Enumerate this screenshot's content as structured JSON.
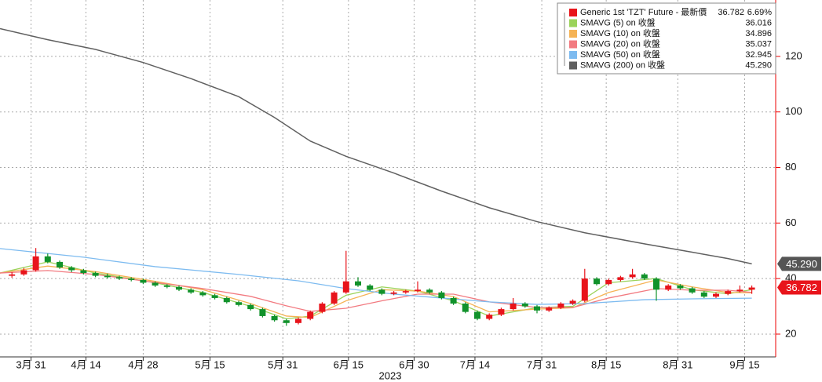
{
  "chart_data": {
    "type": "candlestick",
    "x_label": "2023",
    "xlim": [
      -1,
      64
    ],
    "ylim": [
      11.8,
      140.3
    ],
    "yticks": [
      20,
      40,
      60,
      80,
      100,
      120
    ],
    "xticks": [
      {
        "value": 1.6,
        "label": "3月 31"
      },
      {
        "value": 6.2,
        "label": "4月 14"
      },
      {
        "value": 11.0,
        "label": "4月 28"
      },
      {
        "value": 16.6,
        "label": "5月 15"
      },
      {
        "value": 22.7,
        "label": "5月 31"
      },
      {
        "value": 28.2,
        "label": "6月 15"
      },
      {
        "value": 33.7,
        "label": "6月 30"
      },
      {
        "value": 38.8,
        "label": "7月 14"
      },
      {
        "value": 44.4,
        "label": "7月 31"
      },
      {
        "value": 49.8,
        "label": "8月 15"
      },
      {
        "value": 55.8,
        "label": "8月 31"
      },
      {
        "value": 61.4,
        "label": "9月 15"
      }
    ],
    "grid": true,
    "candles": {
      "name": "Generic 1st 'TZT' Future - 最新價",
      "color": "#e8141b",
      "up_color": "#e8141b",
      "down_color": "#11922b",
      "legend_value": "36.782",
      "change": "6.69%",
      "ohlc": [
        [
          41,
          42.3,
          40.3,
          41.5
        ],
        [
          41.5,
          43.8,
          41,
          43
        ],
        [
          43,
          51,
          42.5,
          48
        ],
        [
          48,
          49,
          45.5,
          46
        ],
        [
          46,
          46.5,
          43.5,
          44
        ],
        [
          44,
          44.5,
          42.3,
          43
        ],
        [
          43,
          43.5,
          41.5,
          42
        ],
        [
          42,
          42.5,
          40.5,
          41
        ],
        [
          41,
          41.8,
          40,
          40.5
        ],
        [
          40.5,
          41,
          39.5,
          40
        ],
        [
          40,
          40.5,
          39,
          39.5
        ],
        [
          39.5,
          40,
          38,
          38.5
        ],
        [
          38.5,
          39,
          37,
          37.5
        ],
        [
          37.5,
          38,
          36.5,
          37
        ],
        [
          37,
          37.5,
          35.5,
          36
        ],
        [
          36,
          36.5,
          34.5,
          35
        ],
        [
          35,
          35.5,
          33.5,
          34
        ],
        [
          34,
          34.5,
          32.5,
          33
        ],
        [
          33,
          33.5,
          31,
          31.5
        ],
        [
          31.5,
          32,
          30,
          30.5
        ],
        [
          30.5,
          31,
          28.5,
          29
        ],
        [
          29,
          29.5,
          26,
          26.5
        ],
        [
          26.5,
          27,
          24.5,
          25
        ],
        [
          25,
          25.5,
          23,
          24
        ],
        [
          24,
          26,
          23.5,
          25.5
        ],
        [
          25.5,
          28.5,
          25,
          28
        ],
        [
          28,
          31.5,
          27.5,
          31
        ],
        [
          31,
          35.5,
          30.5,
          35
        ],
        [
          35,
          50,
          34.5,
          39
        ],
        [
          39,
          40.5,
          37,
          37.5
        ],
        [
          37.5,
          38,
          35.5,
          36
        ],
        [
          36,
          36.5,
          34,
          34.5
        ],
        [
          34.5,
          35.5,
          34,
          35
        ],
        [
          35,
          36,
          34.5,
          35.5
        ],
        [
          35.5,
          39,
          35,
          36
        ],
        [
          36,
          36.5,
          34.5,
          35
        ],
        [
          35,
          35.5,
          32.5,
          33
        ],
        [
          33,
          33.5,
          30.5,
          31
        ],
        [
          31,
          31.5,
          27.5,
          28
        ],
        [
          28,
          28.5,
          25,
          25.5
        ],
        [
          25.5,
          27.5,
          25,
          27
        ],
        [
          27,
          29.5,
          26.5,
          29
        ],
        [
          29,
          33,
          28.5,
          31
        ],
        [
          31,
          31.5,
          29.5,
          30
        ],
        [
          30,
          30.5,
          27.5,
          28.5
        ],
        [
          28.5,
          30,
          28,
          29.5
        ],
        [
          29.5,
          31.5,
          29,
          31
        ],
        [
          31,
          32.5,
          30.5,
          32
        ],
        [
          32,
          43.5,
          31.5,
          40
        ],
        [
          40,
          40.5,
          37.5,
          38
        ],
        [
          38,
          40,
          37.5,
          39.5
        ],
        [
          39.5,
          41,
          39,
          40.5
        ],
        [
          40.5,
          43.5,
          40,
          41.5
        ],
        [
          41.5,
          42,
          39.5,
          40
        ],
        [
          40,
          40.5,
          32,
          36
        ],
        [
          36,
          38,
          35.5,
          37.5
        ],
        [
          37.5,
          38,
          36,
          36.5
        ],
        [
          36.5,
          37,
          34.5,
          35
        ],
        [
          35,
          35.5,
          33,
          33.5
        ],
        [
          33.5,
          35,
          33,
          34.5
        ],
        [
          34.5,
          36,
          34,
          35.5
        ],
        [
          35.5,
          37.5,
          35,
          36
        ],
        [
          36,
          37.5,
          34.5,
          36.782
        ]
      ]
    },
    "series": [
      {
        "name": "SMAVG (5)  on 收盤",
        "color": "#9bd35a",
        "legend_value": "36.016",
        "x": [
          -1,
          3,
          7,
          12,
          16,
          20,
          23,
          25,
          28,
          31,
          34,
          37,
          40,
          44,
          47,
          50,
          54,
          57,
          60,
          62
        ],
        "values": [
          42,
          46,
          42,
          38.5,
          35,
          30,
          25.5,
          26.5,
          34,
          37,
          35.5,
          32,
          26.5,
          29.5,
          30,
          38.5,
          40,
          36,
          34.5,
          36.016
        ]
      },
      {
        "name": "SMAVG (10)  on 收盤",
        "color": "#f5b355",
        "legend_value": "34.896",
        "x": [
          -1,
          3,
          7,
          12,
          16,
          20,
          23,
          25,
          28,
          31,
          34,
          37,
          40,
          44,
          47,
          50,
          54,
          57,
          60,
          62
        ],
        "values": [
          42,
          44.5,
          42.5,
          39,
          36,
          31,
          26.5,
          26,
          32,
          36,
          35.5,
          33.5,
          28,
          29,
          29.5,
          35,
          39.5,
          37,
          35,
          34.896
        ]
      },
      {
        "name": "SMAVG (20)  on 收盤",
        "color": "#f27a80",
        "legend_value": "35.037",
        "x": [
          -1,
          3,
          7,
          12,
          16,
          20,
          23,
          25,
          28,
          31,
          34,
          37,
          40,
          44,
          47,
          50,
          54,
          57,
          60,
          62
        ],
        "values": [
          42,
          42.9,
          41.5,
          38.6,
          36.4,
          33.6,
          30.2,
          28.2,
          29.3,
          32,
          34.4,
          34.4,
          31.6,
          29.6,
          29.6,
          33,
          36.4,
          35.8,
          35.8,
          35.037
        ]
      },
      {
        "name": "SMAVG (50)  on 收盤",
        "color": "#7dbbf0",
        "legend_value": "32.945",
        "x": [
          -1,
          6,
          12,
          19,
          24,
          28,
          32,
          36,
          40,
          44,
          48,
          53,
          57,
          62
        ],
        "values": [
          50.8,
          47.7,
          44.3,
          41.5,
          39.2,
          36.4,
          34.4,
          33,
          31.6,
          30.7,
          31,
          32.4,
          32.7,
          32.945
        ]
      },
      {
        "name": "SMAVG (200)  on 收盤",
        "color": "#606060",
        "legend_value": "45.290",
        "x": [
          -1,
          3,
          7,
          11,
          15,
          19,
          22,
          25,
          28,
          32,
          36,
          40,
          44,
          48,
          53,
          57,
          60,
          62
        ],
        "values": [
          130,
          126,
          122.5,
          117.8,
          112,
          105.5,
          98,
          89.5,
          84,
          78,
          71.5,
          65.5,
          60.5,
          56.5,
          52.5,
          49.5,
          47.2,
          45.29
        ]
      }
    ]
  }
}
